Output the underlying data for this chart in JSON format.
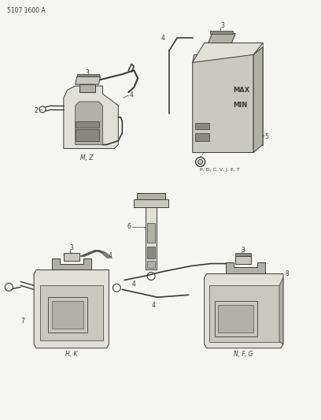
{
  "title": "5107 1600 A",
  "bg_color": "#f5f5f2",
  "line_color": "#3a3a3a",
  "gray_fill": "#c8c8c0",
  "light_gray": "#e0dfd8",
  "mid_gray": "#b0afa8",
  "dark_gray": "#888880",
  "fig_width": 4.08,
  "fig_height": 5.33,
  "dpi": 100,
  "labels": {
    "top_left_code": "5107 1600 A",
    "label_MZ": "M, Z",
    "label_HK": "H, K",
    "label_NFG": "N, F, G",
    "label_PDCVJET": "P, D, C, V, J, E, T",
    "MAX": "MAX",
    "MIN": "MIN"
  }
}
